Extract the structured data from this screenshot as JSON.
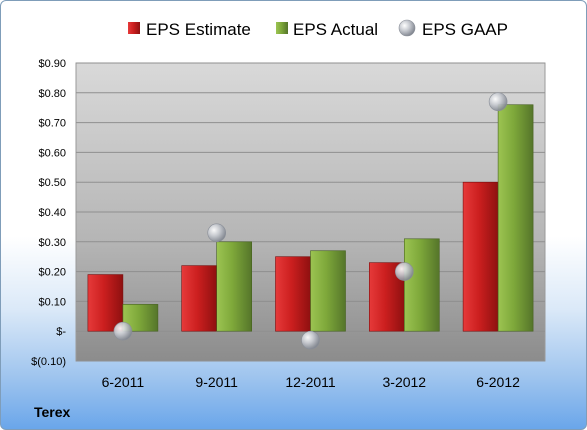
{
  "company": "Terex",
  "colors": {
    "estimate": "#cc1f1f",
    "actual": "#7ea83a",
    "gaap": "#b8bcc4"
  },
  "chart_data": {
    "type": "bar",
    "categories": [
      "6-2011",
      "9-2011",
      "12-2011",
      "3-2012",
      "6-2012"
    ],
    "series": [
      {
        "name": "EPS Estimate",
        "type": "bar",
        "values": [
          0.19,
          0.22,
          0.25,
          0.23,
          0.5
        ]
      },
      {
        "name": "EPS Actual",
        "type": "bar",
        "values": [
          0.09,
          0.3,
          0.27,
          0.31,
          0.76
        ]
      },
      {
        "name": "EPS GAAP",
        "type": "scatter",
        "values": [
          0.0,
          0.33,
          -0.03,
          0.2,
          0.77
        ]
      }
    ],
    "ylim": [
      -0.1,
      0.9
    ],
    "yticks": [
      0.9,
      0.8,
      0.7,
      0.6,
      0.5,
      0.4,
      0.3,
      0.2,
      0.1,
      0,
      -0.1
    ],
    "ytick_labels": [
      "$0.90",
      "$0.80",
      "$0.70",
      "$0.60",
      "$0.50",
      "$0.40",
      "$0.30",
      "$0.20",
      "$0.10",
      "$-",
      "$(0.10)"
    ],
    "legend_position": "top",
    "grid": true
  }
}
